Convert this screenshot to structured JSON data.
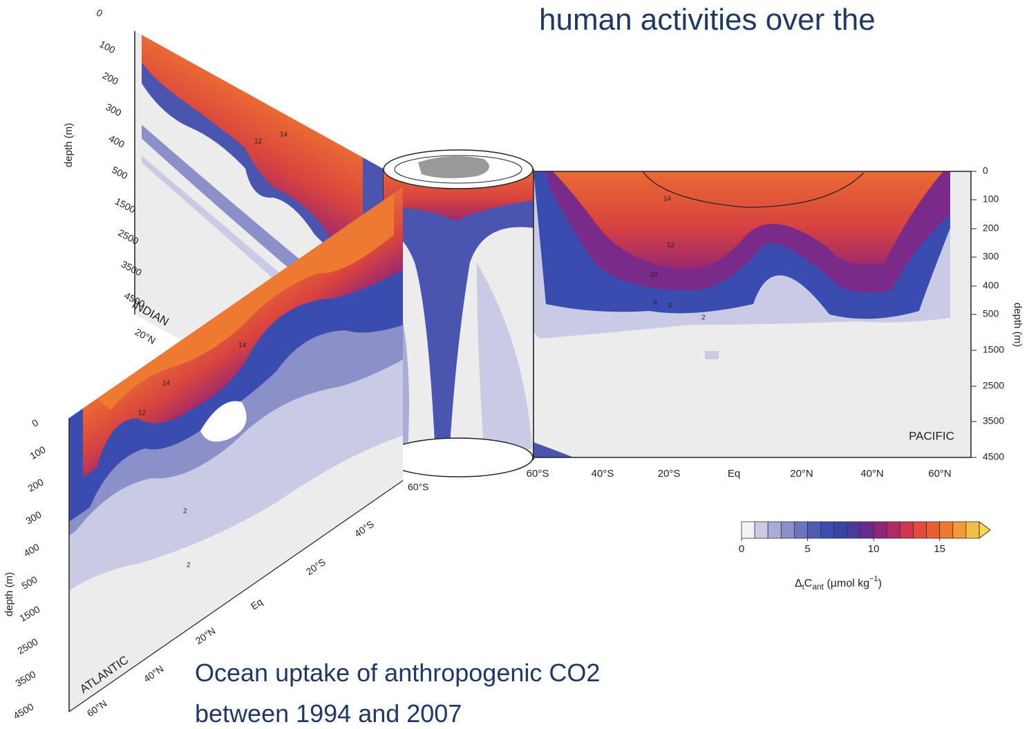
{
  "header": {
    "title": "human activities over the"
  },
  "caption": {
    "lines": [
      "Ocean uptake of anthropogenic CO2",
      "between 1994 and 2007"
    ]
  },
  "pacific": {
    "label": "PACIFIC",
    "depth_label": "depth (m)",
    "depth_ticks": [
      "0",
      "100",
      "200",
      "300",
      "400",
      "500",
      "1500",
      "2500",
      "3500",
      "4500"
    ],
    "lat_ticks": [
      "60°S",
      "40°S",
      "20°S",
      "Eq",
      "20°N",
      "40°N",
      "60°N"
    ],
    "contour_labels": [
      "14",
      "12",
      "10",
      "8",
      "6",
      "2"
    ]
  },
  "indian": {
    "label": "INDIAN",
    "depth_label": "depth (m)",
    "depth_ticks": [
      "0",
      "100",
      "200",
      "300",
      "400",
      "500",
      "1500",
      "2500",
      "3500",
      "4500"
    ],
    "lat_ticks": [
      "20°N"
    ],
    "contour_labels": [
      "14",
      "12"
    ]
  },
  "atlantic": {
    "label": "ATLANTIC",
    "depth_label": "depth (m)",
    "depth_ticks": [
      "0",
      "100",
      "200",
      "300",
      "400",
      "500",
      "1500",
      "2500",
      "3500",
      "4500"
    ],
    "lat_ticks": [
      "60°S",
      "40°S",
      "20°S",
      "Eq",
      "20°N",
      "40°N",
      "60°N"
    ],
    "contour_labels": [
      "14",
      "14",
      "12",
      "2",
      "2"
    ]
  },
  "colorbar": {
    "ticks": [
      0,
      5,
      10,
      15
    ],
    "lim": [
      0,
      18
    ],
    "colors": [
      "#f2f2f2",
      "#c9cbe4",
      "#a9acd6",
      "#8b90c9",
      "#6c74bf",
      "#4f5cb6",
      "#3a4cb0",
      "#3845a6",
      "#4a3a9a",
      "#6a2c8c",
      "#8e257a",
      "#b02a63",
      "#cf3650",
      "#e24a3d",
      "#e95f34",
      "#ee7a32",
      "#f29a35",
      "#f5bd44"
    ],
    "arrow_color": "#f7d84e",
    "label": {
      "delta": "Δ",
      "sub_t": "t",
      "c": "C",
      "sub_ant": "ant",
      "unit": " (µmol kg",
      "sup": "−1",
      "close": ")"
    }
  }
}
